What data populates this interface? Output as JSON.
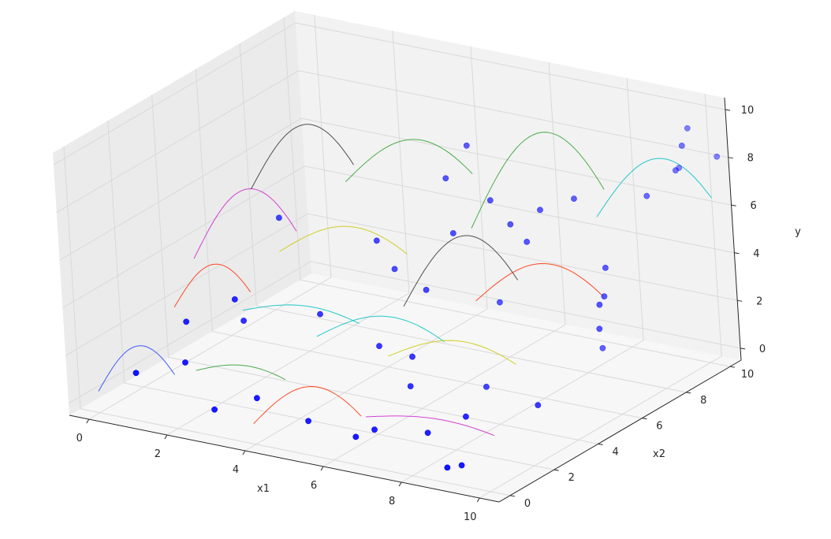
{
  "chart_data": {
    "type": "scatter3d",
    "xlabel": "x1",
    "ylabel": "x2",
    "zlabel": "y",
    "xlim": [
      -0.5,
      10.5
    ],
    "ylim": [
      -0.5,
      10.5
    ],
    "zlim": [
      -0.5,
      10.5
    ],
    "x_ticks": [
      "0",
      "2",
      "4",
      "6",
      "8",
      "10"
    ],
    "y_ticks": [
      "0",
      "2",
      "4",
      "6",
      "8",
      "10"
    ],
    "z_ticks": [
      "0",
      "2",
      "4",
      "6",
      "8",
      "10"
    ],
    "x_tick_values": [
      0,
      2,
      4,
      6,
      8,
      10
    ],
    "y_tick_values": [
      0,
      2,
      4,
      6,
      8,
      10
    ],
    "z_tick_values": [
      0,
      2,
      4,
      6,
      8,
      10
    ],
    "grid": true,
    "point_color": "#0000ff",
    "points": [
      [
        1.0,
        0.0,
        1.5
      ],
      [
        2.0,
        0.5,
        2.0
      ],
      [
        2.8,
        0.3,
        0.4
      ],
      [
        4.8,
        1.0,
        0.2
      ],
      [
        6.5,
        1.0,
        0.4
      ],
      [
        7.7,
        1.3,
        0.5
      ],
      [
        6.3,
        0.5,
        0.3
      ],
      [
        8.8,
        0.2,
        0.0
      ],
      [
        9.0,
        0.5,
        0.0
      ],
      [
        8.3,
        2.0,
        1.0
      ],
      [
        6.5,
        2.7,
        1.3
      ],
      [
        9.3,
        3.5,
        1.0
      ],
      [
        9.0,
        7.0,
        1.4
      ],
      [
        2.5,
        2.0,
        4.0
      ],
      [
        1.5,
        1.5,
        3.0
      ],
      [
        2.4,
        2.5,
        2.8
      ],
      [
        3.8,
        3.5,
        3.0
      ],
      [
        5.4,
        3.3,
        2.3
      ],
      [
        6.3,
        3.2,
        2.2
      ],
      [
        4.8,
        5.2,
        4.3
      ],
      [
        6.0,
        4.5,
        4.2
      ],
      [
        7.0,
        6.0,
        3.2
      ],
      [
        7.4,
        4.5,
        0.6
      ],
      [
        3.8,
        0.5,
        1.1
      ],
      [
        2.3,
        4.5,
        6.0
      ],
      [
        4.5,
        5.0,
        5.5
      ],
      [
        6.2,
        5.5,
        6.1
      ],
      [
        7.8,
        6.0,
        6.0
      ],
      [
        9.5,
        6.5,
        5.2
      ],
      [
        9.6,
        6.2,
        4.2
      ],
      [
        9.7,
        5.8,
        4.1
      ],
      [
        9.6,
        5.9,
        3.0
      ],
      [
        5.8,
        6.0,
        8.0
      ],
      [
        6.1,
        6.5,
        9.2
      ],
      [
        6.8,
        6.2,
        7.3
      ],
      [
        7.4,
        6.0,
        6.6
      ],
      [
        7.9,
        6.5,
        7.1
      ],
      [
        8.5,
        7.0,
        7.5
      ],
      [
        9.8,
        8.0,
        7.5
      ],
      [
        9.5,
        10.0,
        7.5
      ],
      [
        10.0,
        9.0,
        8.1
      ],
      [
        10.2,
        9.0,
        9.2
      ],
      [
        9.9,
        9.8,
        9.4
      ],
      [
        10.5,
        10.0,
        8.3
      ]
    ],
    "curves": [
      {
        "color": "#1f3fff",
        "x0": 0.0,
        "x1": 2.0,
        "y": 0.0,
        "z0": 0.4,
        "zpeak": 2.6
      },
      {
        "color": "#2ca02c",
        "x0": 1.5,
        "x1": 3.8,
        "y": 1.8,
        "z0": 0.8,
        "zpeak": 1.4
      },
      {
        "color": "#ff2a00",
        "x0": 3.2,
        "x1": 6.0,
        "y": 1.3,
        "z0": -0.6,
        "zpeak": 1.4
      },
      {
        "color": "#cc22cc",
        "x0": 6.0,
        "x1": 9.3,
        "y": 1.5,
        "z0": 0.5,
        "zpeak": 1.0
      },
      {
        "color": "#ff2a00",
        "x0": 0.8,
        "x1": 2.8,
        "y": 2.2,
        "z0": 3.0,
        "zpeak": 5.1
      },
      {
        "color": "#00c0c0",
        "x0": 1.8,
        "x1": 4.8,
        "y": 3.5,
        "z0": 2.5,
        "zpeak": 3.2
      },
      {
        "color": "#00c0c0",
        "x0": 3.5,
        "x1": 6.8,
        "y": 3.8,
        "z0": 1.8,
        "zpeak": 3.2
      },
      {
        "color": "#c8c800",
        "x0": 5.5,
        "x1": 8.8,
        "y": 3.5,
        "z0": 1.8,
        "zpeak": 3.0
      },
      {
        "color": "#cc22cc",
        "x0": 0.8,
        "x1": 3.5,
        "y": 3.2,
        "z0": 4.5,
        "zpeak": 7.8
      },
      {
        "color": "#c8c800",
        "x0": 2.2,
        "x1": 5.5,
        "y": 4.6,
        "z0": 4.5,
        "zpeak": 6.1
      },
      {
        "color": "#333333",
        "x0": 4.5,
        "x1": 7.5,
        "y": 6.0,
        "z0": 2.2,
        "zpeak": 5.6
      },
      {
        "color": "#ff2a00",
        "x0": 6.5,
        "x1": 9.8,
        "y": 5.8,
        "z0": 3.2,
        "zpeak": 5.3
      },
      {
        "color": "#333333",
        "x0": 1.8,
        "x1": 4.5,
        "y": 4.2,
        "z0": 7.2,
        "zpeak": 10.3
      },
      {
        "color": "#2ca02c",
        "x0": 3.2,
        "x1": 6.5,
        "y": 6.0,
        "z0": 7.0,
        "zpeak": 9.3
      },
      {
        "color": "#2ca02c",
        "x0": 5.5,
        "x1": 9.0,
        "y": 7.5,
        "z0": 5.0,
        "zpeak": 9.5
      },
      {
        "color": "#00c0c0",
        "x0": 8.0,
        "x1": 11.0,
        "y": 8.8,
        "z0": 5.6,
        "zpeak": 8.5
      }
    ]
  }
}
